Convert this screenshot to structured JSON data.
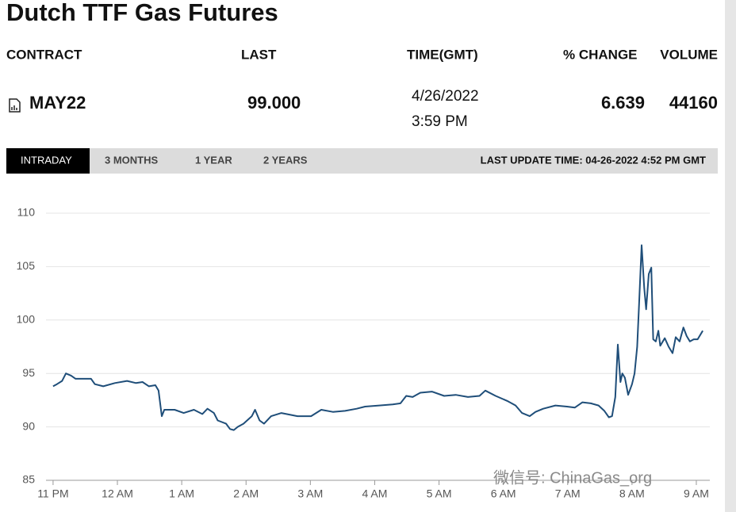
{
  "header": {
    "title": "Dutch TTF Gas Futures"
  },
  "table": {
    "columns": [
      "CONTRACT",
      "LAST",
      "TIME(GMT)",
      "% CHANGE",
      "VOLUME"
    ],
    "row": {
      "contract": "MAY22",
      "last": "99.000",
      "time": [
        "4/26/2022",
        "3:59 PM"
      ],
      "change": "6.639",
      "volume": "44160"
    }
  },
  "tabs": [
    "INTRADAY",
    "3 MONTHS",
    "1 YEAR",
    "2 YEARS"
  ],
  "active_tab": 0,
  "last_update": "LAST UPDATE TIME: 04-26-2022 4:52 PM GMT",
  "watermark": "微信号: ChinaGas_org",
  "chart_data": {
    "type": "line",
    "color": "#1f4e79",
    "grid": true,
    "x": [
      0,
      0.06,
      0.14,
      0.2,
      0.28,
      0.35,
      0.59,
      0.65,
      0.78,
      0.96,
      1.15,
      1.29,
      1.39,
      1.49,
      1.59,
      1.64,
      1.69,
      1.73,
      1.89,
      2.03,
      2.19,
      2.32,
      2.4,
      2.5,
      2.56,
      2.69,
      2.75,
      2.81,
      2.87,
      2.96,
      3.09,
      3.14,
      3.21,
      3.28,
      3.39,
      3.55,
      3.8,
      4.01,
      4.17,
      4.35,
      4.54,
      4.72,
      4.85,
      5.07,
      5.28,
      5.4,
      5.49,
      5.59,
      5.71,
      5.89,
      6.08,
      6.26,
      6.45,
      6.63,
      6.72,
      6.88,
      7.07,
      7.19,
      7.29,
      7.41,
      7.5,
      7.62,
      7.81,
      7.99,
      8.11,
      8.23,
      8.36,
      8.48,
      8.57,
      8.64,
      8.69,
      8.74,
      8.78,
      8.82,
      8.85,
      8.89,
      8.94,
      9,
      9.04,
      9.08,
      9.11,
      9.15,
      9.19,
      9.22,
      9.26,
      9.3,
      9.33,
      9.37,
      9.41,
      9.44,
      9.51,
      9.57,
      9.63,
      9.68,
      9.74,
      9.8,
      9.85,
      9.9,
      9.96,
      10.02,
      10.1
    ],
    "values": [
      93.8,
      94,
      94.3,
      95,
      94.8,
      94.5,
      94.5,
      94,
      93.8,
      94.1,
      94.3,
      94.1,
      94.2,
      93.8,
      93.9,
      93.4,
      91,
      91.6,
      91.6,
      91.3,
      91.6,
      91.2,
      91.7,
      91.3,
      90.6,
      90.3,
      89.8,
      89.7,
      90,
      90.3,
      91,
      91.6,
      90.6,
      90.3,
      91,
      91.3,
      91,
      91,
      91.6,
      91.4,
      91.5,
      91.7,
      91.9,
      92,
      92.1,
      92.2,
      92.9,
      92.8,
      93.2,
      93.3,
      92.9,
      93,
      92.8,
      92.9,
      93.4,
      92.9,
      92.4,
      92,
      91.3,
      91,
      91.4,
      91.7,
      92,
      91.9,
      91.8,
      92.3,
      92.2,
      92,
      91.5,
      90.9,
      91,
      92.8,
      97.7,
      94.2,
      95,
      94.6,
      93,
      94,
      95,
      97.5,
      101.5,
      107,
      103,
      101,
      104.3,
      104.9,
      98.2,
      98,
      99,
      97.6,
      98.3,
      97.5,
      96.9,
      98.4,
      98,
      99.3,
      98.5,
      98,
      98.2,
      98.2,
      99
    ],
    "xlim": [
      -0.11,
      10.21
    ],
    "xticks": [
      {
        "value": 0,
        "label": "11 PM"
      },
      {
        "value": 1,
        "label": "12 AM"
      },
      {
        "value": 2,
        "label": "1 AM"
      },
      {
        "value": 3,
        "label": "2 AM"
      },
      {
        "value": 4,
        "label": "3 AM"
      },
      {
        "value": 5,
        "label": "4 AM"
      },
      {
        "value": 6,
        "label": "5 AM"
      },
      {
        "value": 7,
        "label": "6 AM"
      },
      {
        "value": 8,
        "label": "7 AM"
      },
      {
        "value": 9,
        "label": "8 AM"
      },
      {
        "value": 10,
        "label": "9 AM"
      }
    ],
    "ylim": [
      85,
      110
    ],
    "yticks": [
      85,
      90,
      95,
      100,
      105,
      110
    ]
  }
}
